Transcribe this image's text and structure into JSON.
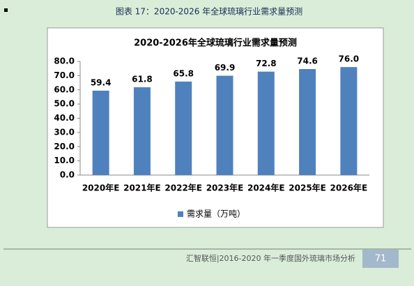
{
  "caption": "图表 17：2020-2026 年全球琉璃行业需求量预测",
  "chart_data": {
    "type": "bar",
    "title": "2020-2026年全球琉璃行业需求量预测",
    "categories": [
      "2020年E",
      "2021年E",
      "2022年E",
      "2023年E",
      "2024年E",
      "2025年E",
      "2026年E"
    ],
    "series": [
      {
        "name": "需求量（万吨）",
        "color": "#4f81bd",
        "values": [
          59.4,
          61.8,
          65.8,
          69.9,
          72.8,
          74.6,
          76.0
        ],
        "value_labels": [
          "59.4",
          "61.8",
          "65.8",
          "69.9",
          "72.8",
          "74.6",
          "76.0"
        ]
      }
    ],
    "ylim": [
      0,
      80
    ],
    "yticks": [
      {
        "value": 0,
        "label": "0.0"
      },
      {
        "value": 10,
        "label": "10.0"
      },
      {
        "value": 20,
        "label": "20.0"
      },
      {
        "value": 30,
        "label": "30.0"
      },
      {
        "value": 40,
        "label": "40.0"
      },
      {
        "value": 50,
        "label": "50.0"
      },
      {
        "value": 60,
        "label": "60.0"
      },
      {
        "value": 70,
        "label": "70.0"
      },
      {
        "value": 80,
        "label": "80.0"
      }
    ],
    "legend": "bottom"
  },
  "footer": {
    "text": "汇智联恒|2016-2020 年一季度国外琉璃市场分析",
    "page": "71"
  }
}
